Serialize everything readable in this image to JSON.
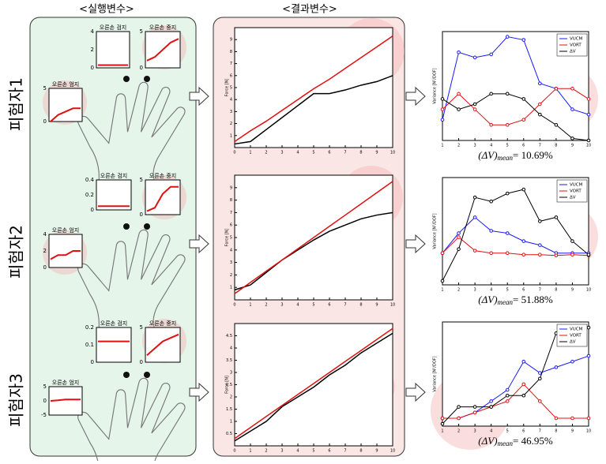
{
  "headers": {
    "inputs": "<실행변수>",
    "outputs": "<결과변수>"
  },
  "subjects": [
    {
      "label": "피험자1",
      "fingers": [
        {
          "title": "오른손 엄지",
          "ylim": [
            0,
            5
          ],
          "yticks": [
            0,
            5
          ],
          "color": "#e01010",
          "values": [
            0,
            1,
            1.5,
            2,
            2
          ]
        },
        {
          "title": "오른손 검지",
          "ylim": [
            0,
            4
          ],
          "yticks": [
            0,
            2,
            4
          ],
          "color": "#e01010",
          "values": [
            0.3,
            0.3,
            0.3,
            0.3,
            0.3
          ]
        },
        {
          "title": "오른손 중지",
          "ylim": [
            0,
            5
          ],
          "yticks": [
            0,
            5
          ],
          "color": "#e01010",
          "values": [
            1,
            1.5,
            2.5,
            3.5,
            4
          ]
        }
      ],
      "force": {
        "type": "line",
        "ylabel": "Force [N]",
        "xlim": [
          0,
          10
        ],
        "xticks": [
          0,
          1,
          2,
          3,
          4,
          5,
          6,
          7,
          8,
          9,
          10
        ],
        "ylim": [
          0,
          10
        ],
        "yticks": [
          1,
          2,
          3,
          4,
          5,
          6,
          7,
          8,
          9
        ],
        "x": [
          0,
          1,
          2,
          3,
          4,
          5,
          6,
          7,
          8,
          9,
          10
        ],
        "series": [
          {
            "color": "#000000",
            "values": [
              0.3,
              0.5,
              1.5,
              2.5,
              3.5,
              4.5,
              4.5,
              4.8,
              5.2,
              5.5,
              6
            ]
          },
          {
            "color": "#e01010",
            "values": [
              0.5,
              1.4,
              2.2,
              3.1,
              4,
              4.9,
              5.7,
              6.6,
              7.5,
              8.4,
              9.3
            ]
          }
        ]
      },
      "variance": {
        "type": "line",
        "ylabel": "Variance [N²/DOF]",
        "xlim": [
          1,
          10
        ],
        "xticks": [
          1,
          2,
          3,
          4,
          5,
          6,
          7,
          8,
          9,
          10
        ],
        "ylim": [
          0,
          1.05
        ],
        "x": [
          1,
          2,
          3,
          4,
          5,
          6,
          7,
          8,
          9,
          10
        ],
        "series": [
          {
            "name": "VUCM",
            "color": "#1a1aff",
            "values": [
              0.2,
              0.85,
              0.8,
              0.83,
              1,
              0.97,
              0.55,
              0.5,
              0.3,
              0.25
            ]
          },
          {
            "name": "VORT",
            "color": "#e01010",
            "values": [
              0.3,
              0.45,
              0.3,
              0.15,
              0.15,
              0.2,
              0.35,
              0.5,
              0.5,
              0.4
            ]
          },
          {
            "name": "ΔV",
            "color": "#000000",
            "values": [
              0.4,
              0.3,
              0.35,
              0.45,
              0.45,
              0.4,
              0.25,
              0.15,
              0.02,
              0
            ]
          }
        ],
        "caption": {
          "main": "(ΔV)",
          "sub": "mean",
          "value": "= 10.69%"
        }
      }
    },
    {
      "label": "피험자2",
      "fingers": [
        {
          "title": "오른손 엄지",
          "ylim": [
            0,
            4
          ],
          "yticks": [
            0,
            2,
            4
          ],
          "color": "#e01010",
          "values": [
            1,
            1.5,
            1.5,
            2,
            2
          ]
        },
        {
          "title": "오른손 검지",
          "ylim": [
            0,
            0.4
          ],
          "yticks": [
            0,
            0.2,
            0.4
          ],
          "color": "#e01010",
          "values": [
            0.05,
            0.05,
            0.05,
            0.05,
            0.05
          ]
        },
        {
          "title": "오른손 중지",
          "ylim": [
            0,
            5
          ],
          "yticks": [
            0,
            5
          ],
          "color": "#e01010",
          "values": [
            0.5,
            1,
            3,
            4,
            4
          ]
        }
      ],
      "force": {
        "type": "line",
        "ylabel": "Force [N]",
        "xlim": [
          0,
          10
        ],
        "xticks": [
          0,
          1,
          2,
          3,
          4,
          5,
          6,
          7,
          8,
          9,
          10
        ],
        "ylim": [
          0,
          10
        ],
        "yticks": [
          1,
          2,
          3,
          4,
          5,
          6,
          7,
          8,
          9
        ],
        "x": [
          0,
          1,
          2,
          3,
          4,
          5,
          6,
          7,
          8,
          9,
          10
        ],
        "series": [
          {
            "color": "#000000",
            "values": [
              0.8,
              1.2,
              2.2,
              3.2,
              4,
              4.8,
              5.5,
              6,
              6.5,
              6.8,
              7
            ]
          },
          {
            "color": "#e01010",
            "values": [
              0.5,
              1.4,
              2.3,
              3.2,
              4.1,
              5,
              5.9,
              6.8,
              7.7,
              8.6,
              9.5
            ]
          }
        ]
      },
      "variance": {
        "type": "line",
        "ylabel": "Variance [N²/DOF]",
        "xlim": [
          1,
          10
        ],
        "xticks": [
          1,
          2,
          3,
          4,
          5,
          6,
          7,
          8,
          9,
          10
        ],
        "ylim": [
          -0.35,
          1
        ],
        "x": [
          1,
          2,
          3,
          4,
          5,
          6,
          7,
          8,
          9,
          10
        ],
        "series": [
          {
            "name": "VUCM",
            "color": "#1a1aff",
            "values": [
              0.05,
              0.3,
              0.5,
              0.33,
              0.3,
              0.2,
              0.15,
              0.05,
              0.05,
              0.05
            ]
          },
          {
            "name": "VORT",
            "color": "#e01010",
            "values": [
              0.05,
              0.25,
              0.08,
              0.05,
              0.05,
              0.03,
              0.03,
              0.02,
              0.03,
              0.02
            ]
          },
          {
            "name": "ΔV",
            "color": "#000000",
            "values": [
              -0.3,
              0.1,
              0.75,
              0.7,
              0.8,
              0.85,
              0.45,
              0.5,
              0.2,
              0.03
            ]
          }
        ],
        "caption": {
          "main": "(ΔV)",
          "sub": "mean",
          "value": "= 51.88%"
        }
      }
    },
    {
      "label": "피험자3",
      "fingers": [
        {
          "title": "오른손 엄지",
          "ylim": [
            -5,
            5
          ],
          "yticks": [
            -5,
            0,
            5
          ],
          "color": "#e01010",
          "values": [
            0,
            0.2,
            0.5,
            0.5,
            0.5
          ]
        },
        {
          "title": "오른손 검지",
          "ylim": [
            0,
            0.2
          ],
          "yticks": [
            0,
            0.1,
            0.2
          ],
          "color": "#e01010",
          "values": [
            0.12,
            0.12,
            0.12,
            0.12,
            0.12
          ]
        },
        {
          "title": "오른손 중지",
          "ylim": [
            0,
            5
          ],
          "yticks": [
            0,
            5
          ],
          "color": "#e01010",
          "values": [
            1,
            2,
            3,
            3.5,
            4
          ]
        }
      ],
      "force": {
        "type": "line",
        "ylabel": "Force [N]",
        "xlim": [
          0,
          10
        ],
        "xticks": [
          0,
          1,
          2,
          3,
          4,
          5,
          6,
          7,
          8,
          9,
          10
        ],
        "ylim": [
          0,
          5
        ],
        "yticks": [
          0.5,
          1,
          1.5,
          2,
          2.5,
          3,
          3.5,
          4,
          4.5
        ],
        "x": [
          0,
          1,
          2,
          3,
          4,
          5,
          6,
          7,
          8,
          9,
          10
        ],
        "series": [
          {
            "color": "#000000",
            "values": [
              0.2,
              0.6,
              1,
              1.6,
              2,
              2.4,
              2.9,
              3.3,
              3.8,
              4.2,
              4.6
            ]
          },
          {
            "color": "#e01010",
            "values": [
              0.3,
              0.75,
              1.2,
              1.65,
              2.1,
              2.55,
              3,
              3.45,
              3.9,
              4.35,
              4.8
            ]
          }
        ]
      },
      "variance": {
        "type": "line",
        "ylabel": "Variance [N²/DOF]",
        "xlim": [
          1,
          10
        ],
        "xticks": [
          1,
          2,
          3,
          4,
          5,
          6,
          7,
          8,
          9,
          10
        ],
        "ylim": [
          -0.02,
          0.9
        ],
        "x": [
          1,
          2,
          3,
          4,
          5,
          6,
          7,
          8,
          9,
          10
        ],
        "series": [
          {
            "name": "VUCM",
            "color": "#1a1aff",
            "values": [
              0.05,
              0.05,
              0.1,
              0.2,
              0.3,
              0.55,
              0.45,
              0.5,
              0.55,
              0.6
            ]
          },
          {
            "name": "VORT",
            "color": "#e01010",
            "values": [
              0.05,
              0.05,
              0.1,
              0.15,
              0.2,
              0.35,
              0.2,
              0.05,
              0.05,
              0.05
            ]
          },
          {
            "name": "ΔV",
            "color": "#000000",
            "values": [
              0,
              0.15,
              0.15,
              0.15,
              0.25,
              0.25,
              0.4,
              0.8,
              0.82,
              0.85
            ]
          }
        ],
        "caption": {
          "main": "(ΔV)",
          "sub": "mean",
          "value": "= 46.95%"
        }
      }
    }
  ]
}
